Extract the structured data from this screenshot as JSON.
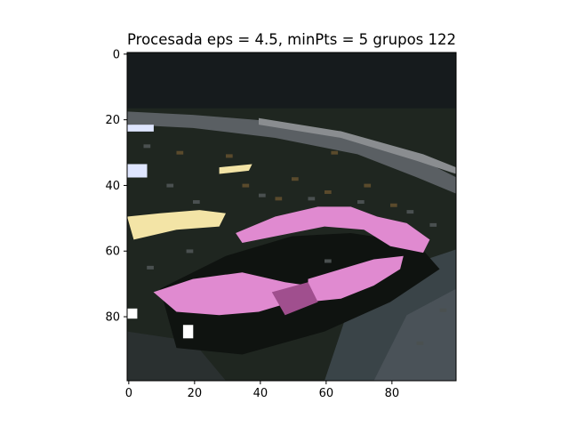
{
  "figure": {
    "title": "Procesada eps = 4.5, minPts = 5 grupos 122"
  },
  "image": {
    "description_role": "clustered (DBSCAN) segmentation of a photo of a car",
    "grid_size": [
      100,
      100
    ],
    "palette": {
      "background_dark": "#141a1d",
      "foliage_dark": "#1f2620",
      "road_gray": "#5a5f63",
      "light_gray": "#8a8d90",
      "car_pink": "#e08ad0",
      "car_pink_dark": "#a04f8e",
      "pale_yellow": "#f3e4a6",
      "pale_blue": "#dfe6ff",
      "white": "#ffffff",
      "brown": "#5a4a2c",
      "slate": "#3a4448"
    }
  },
  "axes": {
    "x_ticks": [
      "0",
      "20",
      "40",
      "60",
      "80"
    ],
    "y_ticks": [
      "0",
      "20",
      "40",
      "60",
      "80"
    ],
    "x_tick_values": [
      0,
      20,
      40,
      60,
      80
    ],
    "y_tick_values": [
      0,
      20,
      40,
      60,
      80
    ],
    "xlim": [
      -0.5,
      99.5
    ],
    "ylim": [
      99.5,
      -0.5
    ]
  }
}
